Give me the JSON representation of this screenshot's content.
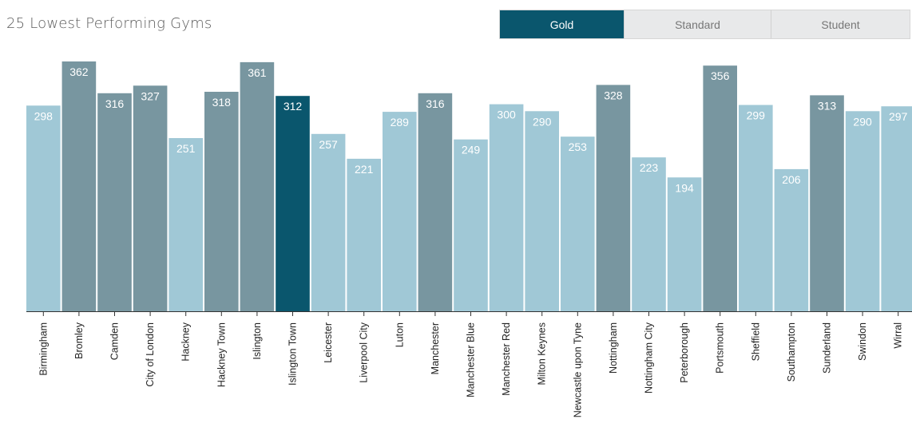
{
  "header": {
    "title": "25 Lowest Performing Gyms"
  },
  "tabs": [
    {
      "label": "Gold",
      "active": true
    },
    {
      "label": "Standard",
      "active": false
    },
    {
      "label": "Student",
      "active": false
    }
  ],
  "colors": {
    "selected": "#0a566d",
    "above_average": "#7896a0",
    "below_average": "#a0c8d6",
    "axis": "#333333"
  },
  "chart_data": {
    "type": "bar",
    "title": "25 Lowest Performing Gyms",
    "xlabel": "",
    "ylabel": "",
    "ylim": [
      0,
      362
    ],
    "categories": [
      "Birmingham",
      "Bromley",
      "Camden",
      "City of London",
      "Hackney",
      "Hackney Town",
      "Islington",
      "Islington Town",
      "Leicester",
      "Liverpool City",
      "Luton",
      "Manchester",
      "Manchester Blue",
      "Manchester Red",
      "Milton Keynes",
      "Newcastle upon Tyne",
      "Nottingham",
      "Nottingham City",
      "Peterborough",
      "Portsmouth",
      "Sheffield",
      "Southampton",
      "Sunderland",
      "Swindon",
      "Wirral"
    ],
    "values": [
      298,
      362,
      316,
      327,
      251,
      318,
      361,
      312,
      257,
      221,
      289,
      316,
      249,
      300,
      290,
      253,
      328,
      223,
      194,
      356,
      299,
      206,
      313,
      290,
      297
    ],
    "highlight": [
      "below",
      "above",
      "above",
      "above",
      "below",
      "above",
      "above",
      "selected",
      "below",
      "below",
      "below",
      "above",
      "below",
      "below",
      "below",
      "below",
      "above",
      "below",
      "below",
      "above",
      "below",
      "below",
      "above",
      "below",
      "below"
    ]
  }
}
